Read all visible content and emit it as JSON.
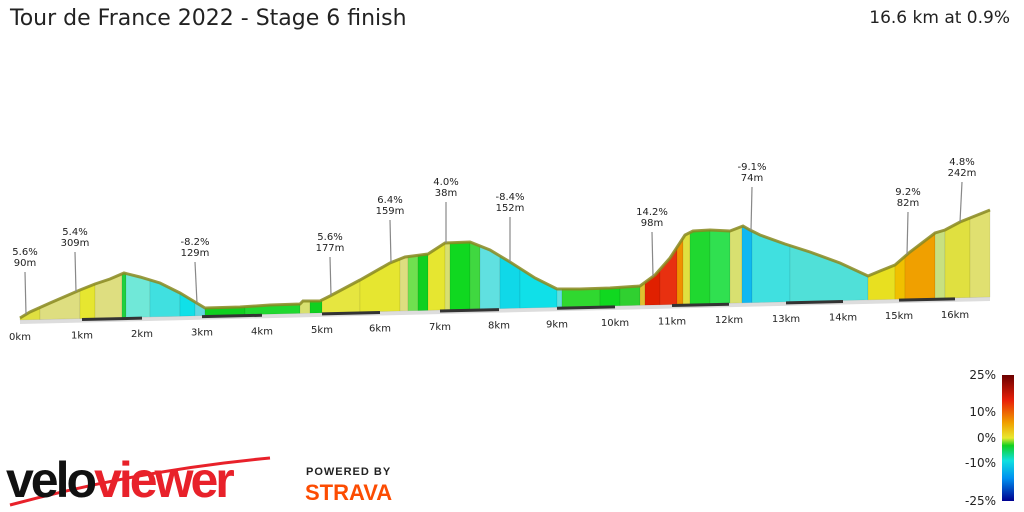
{
  "header": {
    "title": "Tour de France 2022 - Stage 6 finish",
    "summary": "16.6 km at 0.9%"
  },
  "axis": {
    "ticks": [
      "0km",
      "1km",
      "2km",
      "3km",
      "4km",
      "5km",
      "6km",
      "7km",
      "8km",
      "9km",
      "10km",
      "11km",
      "12km",
      "13km",
      "14km",
      "15km",
      "16km"
    ]
  },
  "annotations": [
    {
      "grade": "5.6%",
      "length": "90m"
    },
    {
      "grade": "5.4%",
      "length": "309m"
    },
    {
      "grade": "-8.2%",
      "length": "129m"
    },
    {
      "grade": "5.6%",
      "length": "177m"
    },
    {
      "grade": "6.4%",
      "length": "159m"
    },
    {
      "grade": "4.0%",
      "length": "38m"
    },
    {
      "grade": "-8.4%",
      "length": "152m"
    },
    {
      "grade": "14.2%",
      "length": "98m"
    },
    {
      "grade": "-9.1%",
      "length": "74m"
    },
    {
      "grade": "9.2%",
      "length": "82m"
    },
    {
      "grade": "4.8%",
      "length": "242m"
    }
  ],
  "legend": {
    "labels": [
      "25%",
      "10%",
      "0%",
      "-10%",
      "-25%"
    ],
    "colors": [
      "#6b0000",
      "#e8200a",
      "#f0a000",
      "#e8e830",
      "#10d020",
      "#10e0e0",
      "#0090f0",
      "#000090"
    ]
  },
  "branding": {
    "logo_a": "velo",
    "logo_b": "viewer",
    "powered_by": "POWERED BY",
    "strava": "STRAVA",
    "strava_color": "#fc4c02"
  }
}
